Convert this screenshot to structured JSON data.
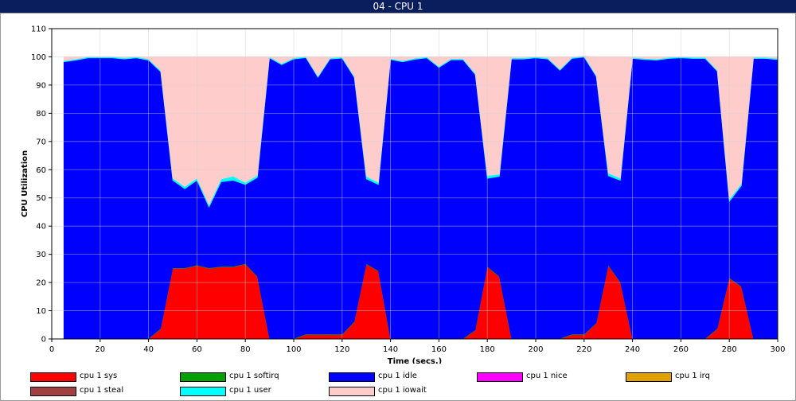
{
  "window_title": "04 - CPU 1",
  "chart_data": {
    "type": "area",
    "stacked": true,
    "xlabel": "Time (secs.)",
    "ylabel": "CPU Utilization",
    "xlim": [
      0,
      300
    ],
    "ylim": [
      0,
      110
    ],
    "x_ticks": [
      0,
      20,
      40,
      60,
      80,
      100,
      120,
      140,
      160,
      180,
      200,
      220,
      240,
      260,
      280,
      300
    ],
    "y_ticks": [
      0,
      10,
      20,
      30,
      40,
      50,
      60,
      70,
      80,
      90,
      100,
      110
    ],
    "x": [
      5,
      10,
      15,
      20,
      25,
      30,
      35,
      40,
      45,
      50,
      55,
      60,
      65,
      70,
      75,
      80,
      85,
      90,
      95,
      100,
      105,
      110,
      115,
      120,
      125,
      130,
      135,
      140,
      145,
      150,
      155,
      160,
      165,
      170,
      175,
      180,
      185,
      190,
      195,
      200,
      205,
      210,
      215,
      220,
      225,
      230,
      235,
      240,
      245,
      250,
      255,
      260,
      265,
      270,
      275,
      280,
      285,
      290,
      295,
      300
    ],
    "series": [
      {
        "name": "cpu 1 sys",
        "color": "#ff0000",
        "values": [
          0,
          0,
          0,
          0,
          0,
          0,
          0,
          0,
          3.5,
          25,
          25,
          26,
          25,
          25.5,
          25.5,
          26.5,
          22,
          0,
          0,
          0,
          1.5,
          1.5,
          1.5,
          1.5,
          6,
          26.5,
          24,
          0,
          0,
          0,
          0,
          0,
          0,
          0,
          3,
          25.5,
          22,
          0,
          0,
          0,
          0,
          0,
          1.5,
          1.5,
          5.5,
          26,
          20,
          0,
          0,
          0,
          0,
          0,
          0,
          0,
          3.5,
          21.5,
          18.5,
          0,
          0,
          0
        ]
      },
      {
        "name": "cpu 1 softirq",
        "color": "#00a000",
        "values": [
          0.2,
          0.2,
          0.2,
          0.2,
          0.2,
          0.2,
          0.2,
          0.2,
          0.2,
          0.2,
          0.2,
          0.2,
          0.2,
          0.2,
          0.2,
          0.2,
          0.2,
          0.2,
          0.2,
          0.2,
          0.2,
          0.2,
          0.2,
          0.2,
          0.2,
          0.2,
          0.2,
          0.2,
          0.2,
          0.2,
          0.2,
          0.2,
          0.2,
          0.2,
          0.2,
          0.2,
          0.2,
          0.2,
          0.2,
          0.2,
          0.2,
          0.2,
          0.2,
          0.2,
          0.2,
          0.2,
          0.2,
          0.2,
          0.2,
          0.2,
          0.2,
          0.2,
          0.2,
          0.2,
          0.2,
          0.2,
          0.2,
          0.2,
          0.2,
          0.2
        ]
      },
      {
        "name": "cpu 1 idle",
        "color": "#0000ff",
        "values": [
          98,
          98.6,
          99.4,
          99.4,
          99.4,
          99,
          99.4,
          98.6,
          91,
          31,
          28,
          30,
          21.5,
          30,
          30.5,
          28,
          35,
          99.4,
          97,
          99,
          98,
          91,
          97.5,
          97.8,
          86.5,
          30,
          30.5,
          98.8,
          98,
          98.9,
          99.4,
          96,
          98.7,
          98.7,
          90.5,
          31.2,
          35.4,
          99,
          99,
          99.4,
          99,
          95,
          97.7,
          98.2,
          87.3,
          31.6,
          36,
          99.2,
          98.8,
          98.6,
          99.2,
          99.4,
          99.2,
          99.2,
          91.2,
          27,
          35.6,
          99.2,
          99.2,
          98.8
        ]
      },
      {
        "name": "cpu 1 nice",
        "color": "#ff00ff",
        "values": [
          0,
          0,
          0,
          0,
          0,
          0,
          0,
          0,
          0,
          0,
          0,
          0,
          0,
          0,
          0,
          0,
          0,
          0,
          0,
          0,
          0,
          0,
          0,
          0,
          0,
          0,
          0,
          0,
          0,
          0,
          0,
          0,
          0,
          0,
          0,
          0,
          0,
          0,
          0,
          0,
          0,
          0,
          0,
          0,
          0,
          0,
          0,
          0,
          0,
          0,
          0,
          0,
          0,
          0,
          0,
          0,
          0,
          0,
          0,
          0
        ]
      },
      {
        "name": "cpu 1 irq",
        "color": "#e0a000",
        "values": [
          0,
          0,
          0,
          0,
          0,
          0,
          0,
          0,
          0,
          0,
          0,
          0,
          0,
          0,
          0,
          0,
          0,
          0,
          0,
          0,
          0,
          0,
          0,
          0,
          0,
          0,
          0,
          0,
          0,
          0,
          0,
          0,
          0,
          0,
          0,
          0,
          0,
          0,
          0,
          0,
          0,
          0,
          0,
          0,
          0,
          0,
          0,
          0,
          0,
          0,
          0,
          0,
          0,
          0,
          0,
          0,
          0,
          0,
          0,
          0
        ]
      },
      {
        "name": "cpu 1 steal",
        "color": "#a04040",
        "values": [
          0,
          0,
          0,
          0,
          0,
          0,
          0,
          0,
          0,
          0,
          0,
          0,
          0,
          0,
          0,
          0,
          0,
          0,
          0,
          0,
          0,
          0,
          0,
          0,
          0,
          0,
          0,
          0,
          0,
          0,
          0,
          0,
          0,
          0,
          0,
          0,
          0,
          0,
          0,
          0,
          0,
          0,
          0,
          0,
          0,
          0,
          0,
          0,
          0,
          0,
          0,
          0,
          0,
          0,
          0,
          0,
          0,
          0,
          0,
          0
        ]
      },
      {
        "name": "cpu 1 user",
        "color": "#00ffff",
        "values": [
          0.4,
          0.4,
          0.4,
          0.4,
          0.4,
          0.4,
          0.4,
          0.4,
          0.5,
          0.8,
          0.8,
          0.8,
          0.8,
          1,
          1.5,
          0.8,
          0.8,
          0.4,
          0.4,
          0.4,
          0.4,
          0.4,
          0.4,
          0.4,
          0.4,
          1,
          0.8,
          0.4,
          0.4,
          0.4,
          0.4,
          0.4,
          0.4,
          0.4,
          0.4,
          1,
          0.8,
          0.4,
          0.4,
          0.4,
          0.4,
          0.4,
          0.4,
          0.4,
          0.4,
          1,
          0.8,
          0.4,
          0.4,
          0.4,
          0.4,
          0.4,
          0.4,
          0.4,
          0.4,
          0.8,
          0.8,
          0.4,
          0.4,
          0.4
        ]
      },
      {
        "name": "cpu 1 iowait",
        "color": "#ffcccc",
        "values": [
          1.4,
          0.8,
          0,
          0,
          0,
          0.4,
          0,
          0.8,
          4.8,
          43,
          46,
          43,
          52.5,
          43.3,
          42.3,
          44.5,
          42,
          0,
          2.4,
          0.4,
          0,
          6.9,
          0.4,
          0.1,
          6.9,
          42.3,
          44.5,
          0.6,
          1.4,
          0.5,
          0,
          3.4,
          0.7,
          0.7,
          5.9,
          42.1,
          41.6,
          0.4,
          0.4,
          0,
          0.4,
          4.4,
          0.2,
          0,
          6.6,
          41.2,
          43,
          0.2,
          0.6,
          0.8,
          0.2,
          0,
          0.2,
          0.2,
          4.7,
          50.5,
          44.9,
          0.2,
          0.2,
          0.6
        ]
      }
    ],
    "legend_position": "bottom",
    "grid": true,
    "background_color": "#ffffff",
    "plot_background": "#ffffff"
  }
}
